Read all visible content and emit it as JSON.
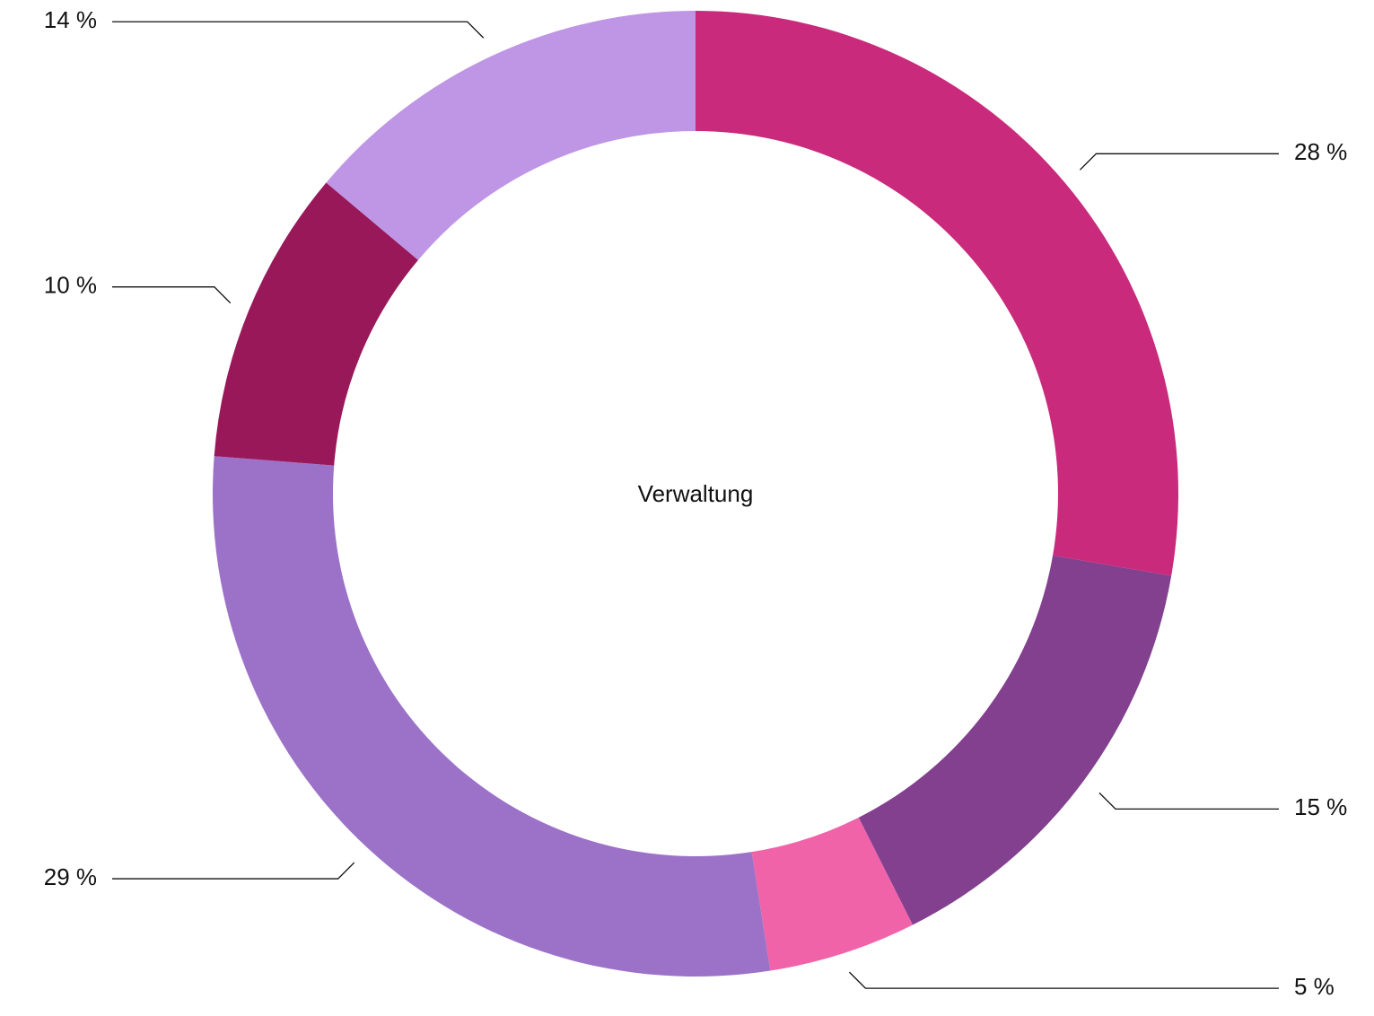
{
  "chart_data": {
    "type": "donut",
    "title": "Verwaltung",
    "values": [
      28,
      15,
      5,
      29,
      10,
      14
    ],
    "value_labels": [
      "28 %",
      "15 %",
      "5 %",
      "29 %",
      "10 %",
      "14 %"
    ],
    "colors": [
      "#c92a7c",
      "#82408f",
      "#f063a8",
      "#9c72c9",
      "#99185a",
      "#bf95e5"
    ]
  }
}
